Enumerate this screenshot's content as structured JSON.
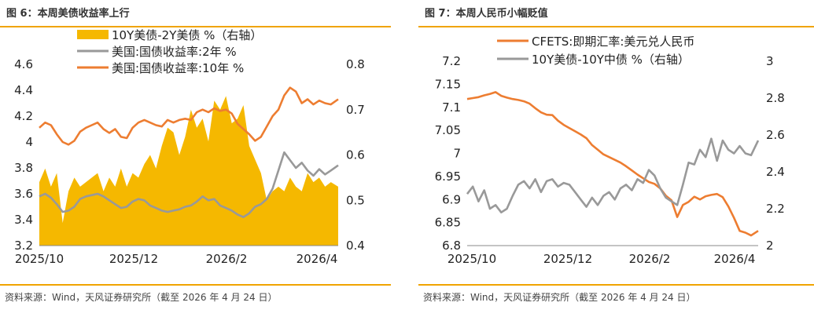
{
  "charts": [
    {
      "title": "图 6：本周美债收益率上行",
      "source": "资料来源：Wind，天风证券研究所（截至 2026 年 4 月 24 日）",
      "chart_data": {
        "type": "line",
        "x_ticks": [
          "2025/10",
          "2025/12",
          "2026/2",
          "2026/4"
        ],
        "x_range": [
          "2025-10-01",
          "2026-04-24"
        ],
        "y_left_ticks": [
          "4.6",
          "4.4",
          "4.2",
          "4",
          "3.8",
          "3.6",
          "3.4",
          "3.2"
        ],
        "y_left_range": [
          3.2,
          4.6
        ],
        "y_right_ticks": [
          "0.8",
          "0.7",
          "0.6",
          "0.5",
          "0.4"
        ],
        "y_right_range": [
          0.4,
          0.8
        ],
        "legend": [
          "10Y美债-2Y美债 %（右轴）",
          "美国:国债收益率:2年 %",
          "美国:国债收益率:10年 %"
        ],
        "series": [
          {
            "name": "10Y美债-2Y美债 %（右轴）",
            "kind": "area",
            "axis": "right",
            "color": "#f5b800",
            "x": [
              "2025-10-01",
              "2025-10-05",
              "2025-10-09",
              "2025-10-13",
              "2025-10-17",
              "2025-10-21",
              "2025-10-25",
              "2025-10-29",
              "2025-11-02",
              "2025-11-06",
              "2025-11-10",
              "2025-11-14",
              "2025-11-18",
              "2025-11-22",
              "2025-11-26",
              "2025-11-30",
              "2025-12-04",
              "2025-12-08",
              "2025-12-12",
              "2025-12-16",
              "2025-12-20",
              "2025-12-24",
              "2025-12-28",
              "2026-01-01",
              "2026-01-05",
              "2026-01-09",
              "2026-01-13",
              "2026-01-17",
              "2026-01-21",
              "2026-01-25",
              "2026-01-29",
              "2026-02-02",
              "2026-02-06",
              "2026-02-10",
              "2026-02-14",
              "2026-02-18",
              "2026-02-22",
              "2026-02-26",
              "2026-03-02",
              "2026-03-06",
              "2026-03-10",
              "2026-03-14",
              "2026-03-18",
              "2026-03-22",
              "2026-03-26",
              "2026-03-30",
              "2026-04-03",
              "2026-04-07",
              "2026-04-11",
              "2026-04-15",
              "2026-04-19",
              "2026-04-24"
            ],
            "values": [
              0.54,
              0.57,
              0.53,
              0.56,
              0.45,
              0.52,
              0.55,
              0.53,
              0.54,
              0.55,
              0.56,
              0.52,
              0.55,
              0.53,
              0.57,
              0.53,
              0.56,
              0.55,
              0.58,
              0.6,
              0.57,
              0.62,
              0.66,
              0.65,
              0.6,
              0.64,
              0.7,
              0.66,
              0.68,
              0.63,
              0.72,
              0.7,
              0.73,
              0.67,
              0.68,
              0.71,
              0.62,
              0.59,
              0.56,
              0.5,
              0.52,
              0.53,
              0.52,
              0.55,
              0.53,
              0.52,
              0.56,
              0.54,
              0.55,
              0.53,
              0.54,
              0.53
            ]
          },
          {
            "name": "美国:国债收益率:2年 %",
            "kind": "line",
            "axis": "left",
            "color": "#999999",
            "x": [
              "2025-10-01",
              "2025-10-05",
              "2025-10-09",
              "2025-10-13",
              "2025-10-17",
              "2025-10-21",
              "2025-10-25",
              "2025-10-29",
              "2025-11-02",
              "2025-11-06",
              "2025-11-10",
              "2025-11-14",
              "2025-11-18",
              "2025-11-22",
              "2025-11-26",
              "2025-11-30",
              "2025-12-04",
              "2025-12-08",
              "2025-12-12",
              "2025-12-16",
              "2025-12-20",
              "2025-12-24",
              "2025-12-28",
              "2026-01-01",
              "2026-01-05",
              "2026-01-09",
              "2026-01-13",
              "2026-01-17",
              "2026-01-21",
              "2026-01-25",
              "2026-01-29",
              "2026-02-02",
              "2026-02-06",
              "2026-02-10",
              "2026-02-14",
              "2026-02-18",
              "2026-02-22",
              "2026-02-26",
              "2026-03-02",
              "2026-03-06",
              "2026-03-10",
              "2026-03-14",
              "2026-03-18",
              "2026-03-22",
              "2026-03-26",
              "2026-03-30",
              "2026-04-03",
              "2026-04-07",
              "2026-04-11",
              "2026-04-15",
              "2026-04-19",
              "2026-04-24"
            ],
            "values": [
              3.58,
              3.6,
              3.57,
              3.52,
              3.46,
              3.47,
              3.5,
              3.56,
              3.58,
              3.59,
              3.6,
              3.58,
              3.55,
              3.52,
              3.49,
              3.5,
              3.54,
              3.56,
              3.55,
              3.51,
              3.49,
              3.47,
              3.46,
              3.47,
              3.48,
              3.5,
              3.51,
              3.54,
              3.58,
              3.55,
              3.56,
              3.51,
              3.49,
              3.47,
              3.44,
              3.42,
              3.45,
              3.5,
              3.52,
              3.56,
              3.64,
              3.78,
              3.92,
              3.86,
              3.8,
              3.84,
              3.78,
              3.74,
              3.79,
              3.75,
              3.78,
              3.82
            ]
          },
          {
            "name": "美国:国债收益率:10年 %",
            "kind": "line",
            "axis": "left",
            "color": "#ed7d31",
            "x": [
              "2025-10-01",
              "2025-10-05",
              "2025-10-09",
              "2025-10-13",
              "2025-10-17",
              "2025-10-21",
              "2025-10-25",
              "2025-10-29",
              "2025-11-02",
              "2025-11-06",
              "2025-11-10",
              "2025-11-14",
              "2025-11-18",
              "2025-11-22",
              "2025-11-26",
              "2025-11-30",
              "2025-12-04",
              "2025-12-08",
              "2025-12-12",
              "2025-12-16",
              "2025-12-20",
              "2025-12-24",
              "2025-12-28",
              "2026-01-01",
              "2026-01-05",
              "2026-01-09",
              "2026-01-13",
              "2026-01-17",
              "2026-01-21",
              "2026-01-25",
              "2026-01-29",
              "2026-02-02",
              "2026-02-06",
              "2026-02-10",
              "2026-02-14",
              "2026-02-18",
              "2026-02-22",
              "2026-02-26",
              "2026-03-02",
              "2026-03-06",
              "2026-03-10",
              "2026-03-14",
              "2026-03-18",
              "2026-03-22",
              "2026-03-26",
              "2026-03-30",
              "2026-04-03",
              "2026-04-07",
              "2026-04-11",
              "2026-04-15",
              "2026-04-19",
              "2026-04-24"
            ],
            "values": [
              4.11,
              4.15,
              4.13,
              4.06,
              4.0,
              3.98,
              4.01,
              4.08,
              4.11,
              4.13,
              4.15,
              4.1,
              4.07,
              4.1,
              4.04,
              4.03,
              4.11,
              4.15,
              4.17,
              4.15,
              4.13,
              4.12,
              4.17,
              4.15,
              4.17,
              4.18,
              4.17,
              4.23,
              4.25,
              4.23,
              4.26,
              4.24,
              4.25,
              4.22,
              4.14,
              4.1,
              4.06,
              4.01,
              4.04,
              4.12,
              4.2,
              4.25,
              4.36,
              4.42,
              4.39,
              4.3,
              4.33,
              4.29,
              4.32,
              4.3,
              4.29,
              4.33
            ]
          }
        ]
      }
    },
    {
      "title": "图 7：本周人民币小幅贬值",
      "source": "资料来源：Wind，天风证券研究所（截至 2026 年 4 月 24 日）",
      "chart_data": {
        "type": "line",
        "x_ticks": [
          "2025/10",
          "2025/12",
          "2026/2",
          "2026/4"
        ],
        "x_range": [
          "2025-10-01",
          "2026-04-24"
        ],
        "y_left_ticks": [
          "7.2",
          "7.15",
          "7.1",
          "7.05",
          "7",
          "6.95",
          "6.9",
          "6.85",
          "6.8"
        ],
        "y_left_range": [
          6.8,
          7.2
        ],
        "y_right_ticks": [
          "3",
          "2.8",
          "2.6",
          "2.4",
          "2.2",
          "2"
        ],
        "y_right_range": [
          2.0,
          3.0
        ],
        "legend": [
          "CFETS:即期汇率:美元兑人民币",
          "10Y美债-10Y中债 %（右轴）"
        ],
        "series": [
          {
            "name": "CFETS:即期汇率:美元兑人民币",
            "kind": "line",
            "axis": "left",
            "color": "#ed7d31",
            "x": [
              "2025-10-01",
              "2025-10-05",
              "2025-10-09",
              "2025-10-13",
              "2025-10-17",
              "2025-10-21",
              "2025-10-25",
              "2025-10-29",
              "2025-11-02",
              "2025-11-06",
              "2025-11-10",
              "2025-11-14",
              "2025-11-18",
              "2025-11-22",
              "2025-11-26",
              "2025-11-30",
              "2025-12-04",
              "2025-12-08",
              "2025-12-12",
              "2025-12-16",
              "2025-12-20",
              "2025-12-24",
              "2025-12-28",
              "2026-01-01",
              "2026-01-05",
              "2026-01-09",
              "2026-01-13",
              "2026-01-17",
              "2026-01-21",
              "2026-01-25",
              "2026-01-29",
              "2026-02-02",
              "2026-02-06",
              "2026-02-10",
              "2026-02-14",
              "2026-02-18",
              "2026-02-22",
              "2026-02-26",
              "2026-03-02",
              "2026-03-06",
              "2026-03-10",
              "2026-03-14",
              "2026-03-18",
              "2026-03-22",
              "2026-03-26",
              "2026-03-30",
              "2026-04-03",
              "2026-04-07",
              "2026-04-11",
              "2026-04-15",
              "2026-04-19",
              "2026-04-24"
            ],
            "values": [
              7.118,
              7.12,
              7.122,
              7.126,
              7.129,
              7.133,
              7.125,
              7.121,
              7.118,
              7.116,
              7.113,
              7.108,
              7.098,
              7.089,
              7.084,
              7.083,
              7.071,
              7.062,
              7.055,
              7.048,
              7.041,
              7.033,
              7.018,
              7.008,
              6.998,
              6.992,
              6.986,
              6.98,
              6.972,
              6.963,
              6.954,
              6.946,
              6.938,
              6.934,
              6.924,
              6.908,
              6.898,
              6.862,
              6.888,
              6.895,
              6.906,
              6.9,
              6.907,
              6.91,
              6.912,
              6.905,
              6.885,
              6.86,
              6.832,
              6.828,
              6.822,
              6.832
            ]
          },
          {
            "name": "10Y美债-10Y中债 %（右轴）",
            "kind": "line",
            "axis": "right",
            "color": "#999999",
            "x": [
              "2025-10-01",
              "2025-10-05",
              "2025-10-09",
              "2025-10-13",
              "2025-10-17",
              "2025-10-21",
              "2025-10-25",
              "2025-10-29",
              "2025-11-02",
              "2025-11-06",
              "2025-11-10",
              "2025-11-14",
              "2025-11-18",
              "2025-11-22",
              "2025-11-26",
              "2025-11-30",
              "2025-12-04",
              "2025-12-08",
              "2025-12-12",
              "2025-12-16",
              "2025-12-20",
              "2025-12-24",
              "2025-12-28",
              "2026-01-01",
              "2026-01-05",
              "2026-01-09",
              "2026-01-13",
              "2026-01-17",
              "2026-01-21",
              "2026-01-25",
              "2026-01-29",
              "2026-02-02",
              "2026-02-06",
              "2026-02-10",
              "2026-02-14",
              "2026-02-18",
              "2026-02-22",
              "2026-02-26",
              "2026-03-02",
              "2026-03-06",
              "2026-03-10",
              "2026-03-14",
              "2026-03-18",
              "2026-03-22",
              "2026-03-26",
              "2026-03-30",
              "2026-04-03",
              "2026-04-07",
              "2026-04-11",
              "2026-04-15",
              "2026-04-19",
              "2026-04-24"
            ],
            "values": [
              2.28,
              2.32,
              2.24,
              2.3,
              2.2,
              2.22,
              2.18,
              2.2,
              2.27,
              2.33,
              2.35,
              2.31,
              2.36,
              2.29,
              2.35,
              2.36,
              2.32,
              2.34,
              2.33,
              2.29,
              2.25,
              2.21,
              2.26,
              2.22,
              2.27,
              2.29,
              2.25,
              2.31,
              2.33,
              2.3,
              2.36,
              2.34,
              2.41,
              2.38,
              2.31,
              2.26,
              2.24,
              2.22,
              2.33,
              2.45,
              2.44,
              2.52,
              2.48,
              2.58,
              2.46,
              2.57,
              2.52,
              2.5,
              2.54,
              2.5,
              2.49,
              2.57
            ]
          }
        ]
      }
    }
  ]
}
